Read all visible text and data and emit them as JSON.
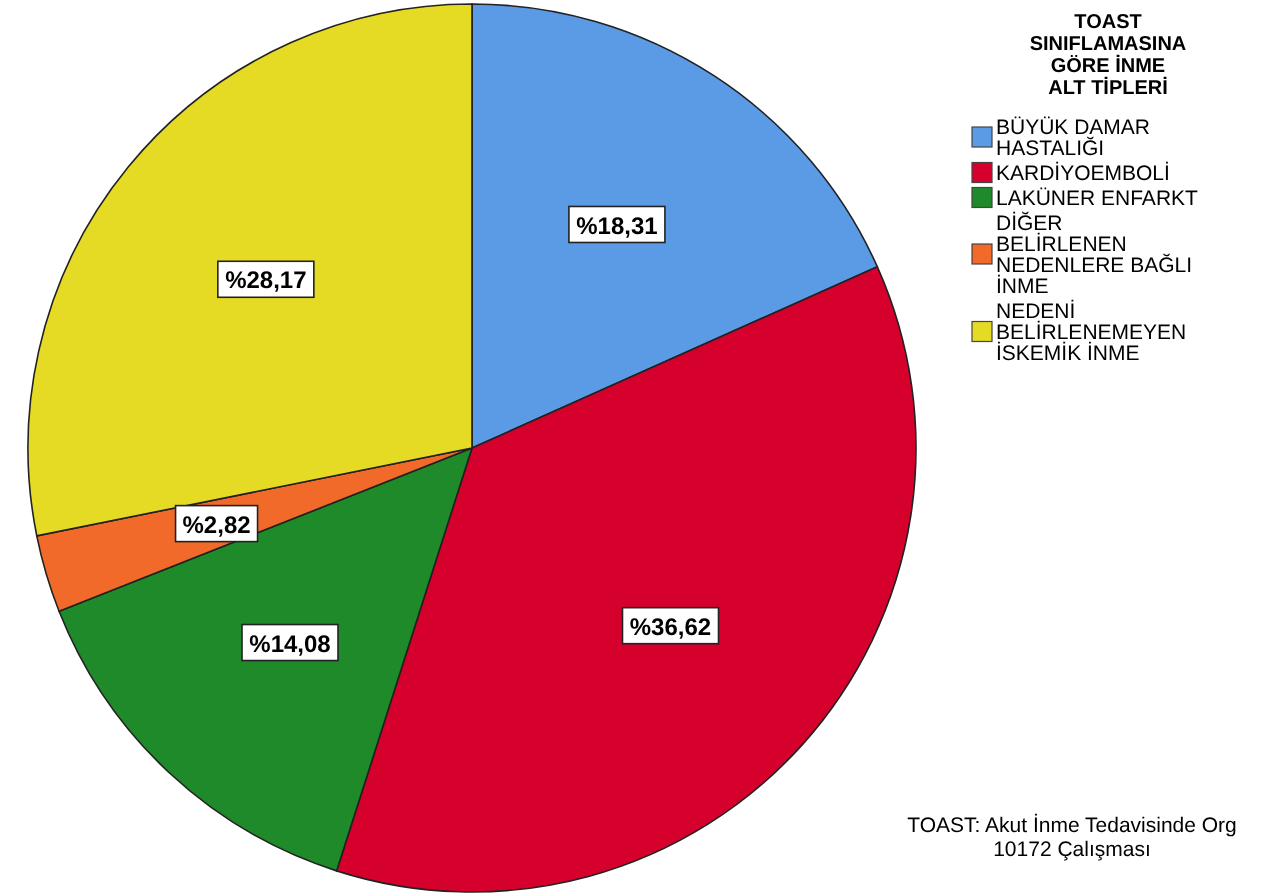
{
  "chart_data": {
    "type": "pie",
    "legend_title": "TOAST SINIFLAMASINA GÖRE İNME ALT TİPLERİ",
    "categories": [
      "BÜYÜK DAMAR HASTALIĞI",
      "KARDİYOEMBOLİ",
      "LAKÜNER ENFARKT",
      "DİĞER BELİRLENEN NEDENLERE BAĞLI İNME",
      "NEDENİ BELİRLENEMEYEN İSKEMİK İNME"
    ],
    "values": [
      18.31,
      36.62,
      14.08,
      2.82,
      28.17
    ],
    "value_labels": [
      "%18,31",
      "%36,62",
      "%14,08",
      "%2,82",
      "%28,17"
    ],
    "colors": [
      "#5b9be6",
      "#d6002c",
      "#1f8a2a",
      "#f26a2a",
      "#e6db24"
    ],
    "legend": "top right",
    "annotations": [
      "TOAST: Akut İnme Tedavisinde Org 10172 Çalışması"
    ]
  }
}
